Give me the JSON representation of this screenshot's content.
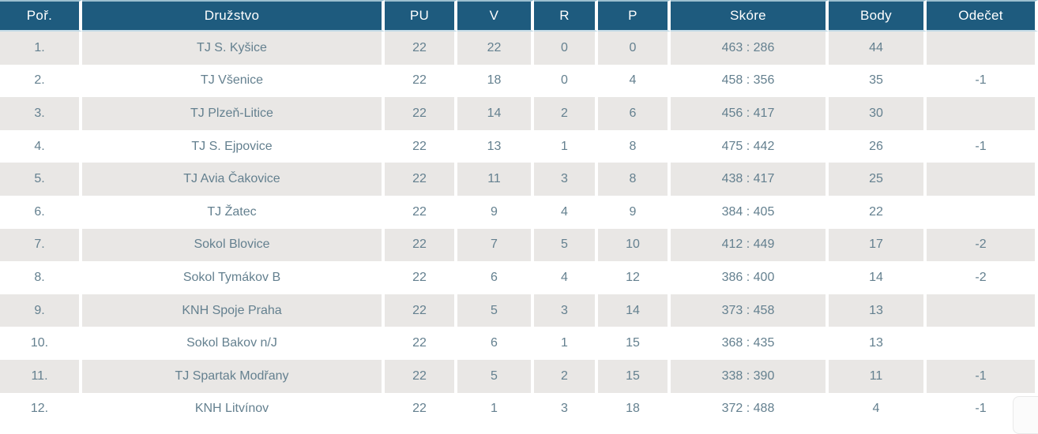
{
  "table": {
    "columns": [
      {
        "key": "rank",
        "label": "Poř."
      },
      {
        "key": "team",
        "label": "Družstvo"
      },
      {
        "key": "pu",
        "label": "PU"
      },
      {
        "key": "v",
        "label": "V"
      },
      {
        "key": "r",
        "label": "R"
      },
      {
        "key": "p",
        "label": "P"
      },
      {
        "key": "score",
        "label": "Skóre"
      },
      {
        "key": "body",
        "label": "Body"
      },
      {
        "key": "odecet",
        "label": "Odečet"
      }
    ],
    "rows": [
      {
        "rank": "1.",
        "team": "TJ S. Kyšice",
        "pu": "22",
        "v": "22",
        "r": "0",
        "p": "0",
        "score": "463 : 286",
        "body": "44",
        "odecet": ""
      },
      {
        "rank": "2.",
        "team": "TJ Všenice",
        "pu": "22",
        "v": "18",
        "r": "0",
        "p": "4",
        "score": "458 : 356",
        "body": "35",
        "odecet": "-1"
      },
      {
        "rank": "3.",
        "team": "TJ Plzeň-Litice",
        "pu": "22",
        "v": "14",
        "r": "2",
        "p": "6",
        "score": "456 : 417",
        "body": "30",
        "odecet": ""
      },
      {
        "rank": "4.",
        "team": "TJ S. Ejpovice",
        "pu": "22",
        "v": "13",
        "r": "1",
        "p": "8",
        "score": "475 : 442",
        "body": "26",
        "odecet": "-1"
      },
      {
        "rank": "5.",
        "team": "TJ Avia Čakovice",
        "pu": "22",
        "v": "11",
        "r": "3",
        "p": "8",
        "score": "438 : 417",
        "body": "25",
        "odecet": ""
      },
      {
        "rank": "6.",
        "team": "TJ Žatec",
        "pu": "22",
        "v": "9",
        "r": "4",
        "p": "9",
        "score": "384 : 405",
        "body": "22",
        "odecet": ""
      },
      {
        "rank": "7.",
        "team": "Sokol Blovice",
        "pu": "22",
        "v": "7",
        "r": "5",
        "p": "10",
        "score": "412 : 449",
        "body": "17",
        "odecet": "-2"
      },
      {
        "rank": "8.",
        "team": "Sokol Tymákov B",
        "pu": "22",
        "v": "6",
        "r": "4",
        "p": "12",
        "score": "386 : 400",
        "body": "14",
        "odecet": "-2"
      },
      {
        "rank": "9.",
        "team": "KNH Spoje Praha",
        "pu": "22",
        "v": "5",
        "r": "3",
        "p": "14",
        "score": "373 : 458",
        "body": "13",
        "odecet": ""
      },
      {
        "rank": "10.",
        "team": "Sokol Bakov n/J",
        "pu": "22",
        "v": "6",
        "r": "1",
        "p": "15",
        "score": "368 : 435",
        "body": "13",
        "odecet": ""
      },
      {
        "rank": "11.",
        "team": "TJ Spartak Modřany",
        "pu": "22",
        "v": "5",
        "r": "2",
        "p": "15",
        "score": "338 : 390",
        "body": "11",
        "odecet": "-1"
      },
      {
        "rank": "12.",
        "team": "KNH Litvínov",
        "pu": "22",
        "v": "1",
        "r": "3",
        "p": "18",
        "score": "372 : 488",
        "body": "4",
        "odecet": "-1"
      }
    ]
  },
  "colors": {
    "header_bg": "#1e5b7e",
    "header_text": "#ffffff",
    "header_border_top": "#9cc0d0",
    "header_border_bottom": "#c5dce7",
    "row_alt_bg": "#e9e7e5",
    "row_bg": "#ffffff",
    "cell_text": "#64808f"
  }
}
